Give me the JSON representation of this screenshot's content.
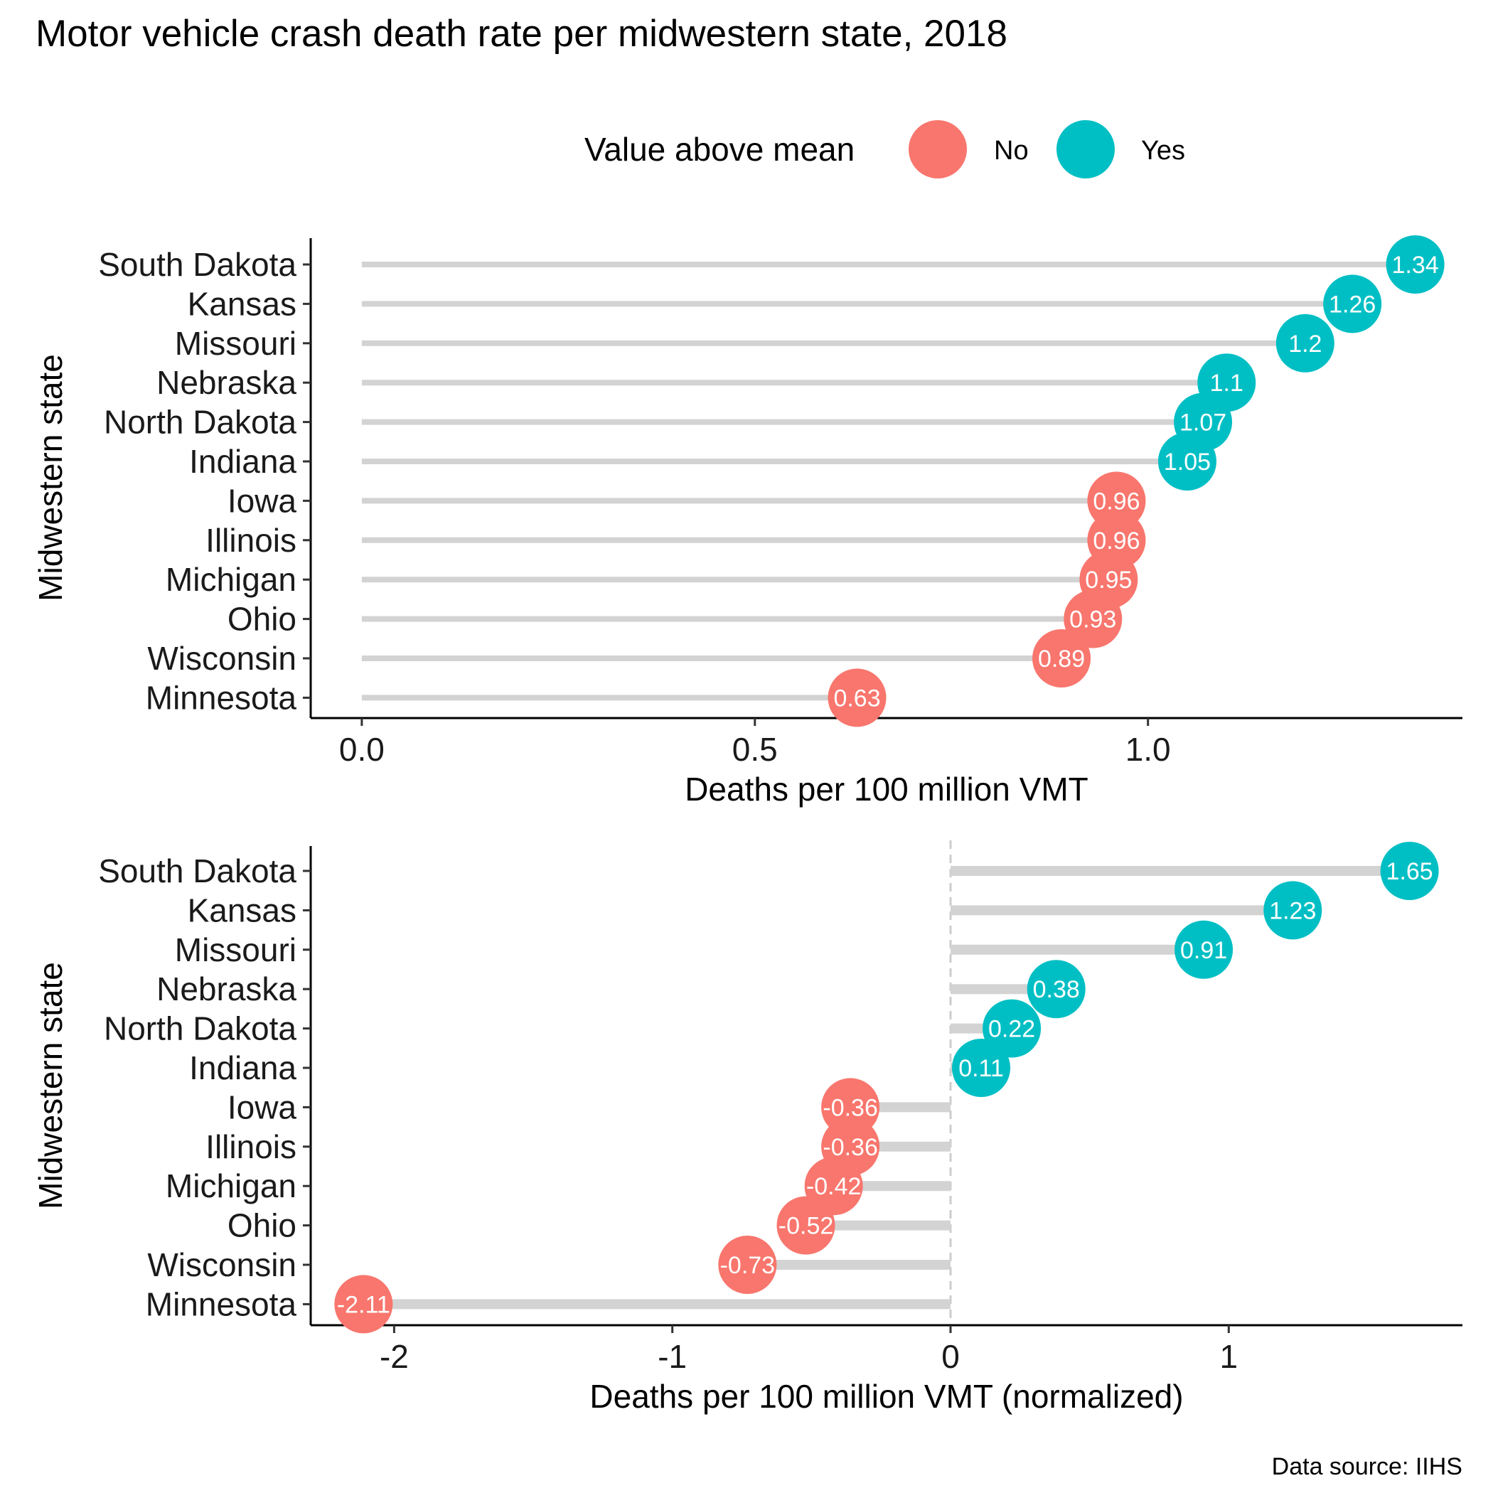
{
  "title": "Motor vehicle crash death rate per midwestern state, 2018",
  "caption": "Data source: IIHS",
  "legend": {
    "title": "Value above mean",
    "items": [
      {
        "label": "No",
        "color": "#F8766D"
      },
      {
        "label": "Yes",
        "color": "#00BFC4"
      }
    ]
  },
  "colors": {
    "No": "#F8766D",
    "Yes": "#00BFC4",
    "segment": "#d3d3d3"
  },
  "chart_data": [
    {
      "type": "lollipop",
      "ylabel": "Midwestern state",
      "xlabel": "Deaths per 100 million VMT",
      "xlim": [
        -0.065,
        1.4
      ],
      "xticks": [
        {
          "value": 0.0,
          "label": "0.0"
        },
        {
          "value": 0.5,
          "label": "0.5"
        },
        {
          "value": 1.0,
          "label": "1.0"
        }
      ],
      "categories": [
        "South Dakota",
        "Kansas",
        "Missouri",
        "Nebraska",
        "North Dakota",
        "Indiana",
        "Iowa",
        "Illinois",
        "Michigan",
        "Ohio",
        "Wisconsin",
        "Minnesota"
      ],
      "values": [
        1.34,
        1.26,
        1.2,
        1.1,
        1.07,
        1.05,
        0.96,
        0.96,
        0.95,
        0.93,
        0.89,
        0.63
      ],
      "labels": [
        "1.34",
        "1.26",
        "1.2",
        "1.1",
        "1.07",
        "1.05",
        "0.96",
        "0.96",
        "0.95",
        "0.93",
        "0.89",
        "0.63"
      ],
      "above_mean": [
        "Yes",
        "Yes",
        "Yes",
        "Yes",
        "Yes",
        "Yes",
        "No",
        "No",
        "No",
        "No",
        "No",
        "No"
      ],
      "segment_from": 0,
      "zero_line": false
    },
    {
      "type": "lollipop",
      "ylabel": "Midwestern state",
      "xlabel": "Deaths per 100 million VMT (normalized)",
      "xlim": [
        -2.3,
        1.84
      ],
      "xticks": [
        {
          "value": -2,
          "label": "-2"
        },
        {
          "value": -1,
          "label": "-1"
        },
        {
          "value": 0,
          "label": "0"
        },
        {
          "value": 1,
          "label": "1"
        }
      ],
      "categories": [
        "South Dakota",
        "Kansas",
        "Missouri",
        "Nebraska",
        "North Dakota",
        "Indiana",
        "Iowa",
        "Illinois",
        "Michigan",
        "Ohio",
        "Wisconsin",
        "Minnesota"
      ],
      "values": [
        1.65,
        1.23,
        0.91,
        0.38,
        0.22,
        0.11,
        -0.36,
        -0.36,
        -0.42,
        -0.52,
        -0.73,
        -2.11
      ],
      "labels": [
        "1.65",
        "1.23",
        "0.91",
        "0.38",
        "0.22",
        "0.11",
        "-0.36",
        "-0.36",
        "-0.42",
        "-0.52",
        "-0.73",
        "-2.11"
      ],
      "above_mean": [
        "Yes",
        "Yes",
        "Yes",
        "Yes",
        "Yes",
        "Yes",
        "No",
        "No",
        "No",
        "No",
        "No",
        "No"
      ],
      "segment_from": 0,
      "zero_line": true
    }
  ]
}
